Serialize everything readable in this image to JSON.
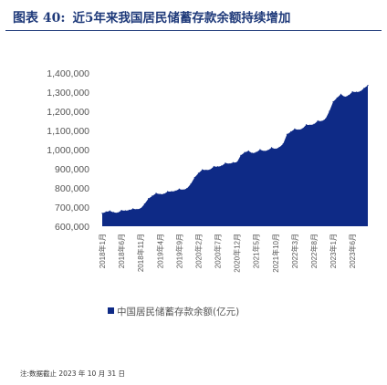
{
  "header": {
    "figure_label": "图表 40:",
    "title": "近5年来我国居民储蓄存款余额持续增加"
  },
  "note": "注:数据截止 2023 年 10 月 31 日",
  "colors": {
    "title": "#1f3a7a",
    "area": "#0e2a86"
  },
  "chart_data": {
    "type": "area",
    "title": "近5年来我国居民储蓄存款余额持续增加",
    "xlabel": "",
    "ylabel": "",
    "ylim": [
      600000,
      1400000
    ],
    "yticks": [
      600000,
      700000,
      800000,
      900000,
      1000000,
      1100000,
      1200000,
      1300000,
      1400000
    ],
    "ytick_labels": [
      "600,000",
      "700,000",
      "800,000",
      "900,000",
      "1,000,000",
      "1,100,000",
      "1,200,000",
      "1,300,000",
      "1,400,000"
    ],
    "grid": false,
    "legend_position": "bottom",
    "categories": [
      "2018年1月",
      "2018年6月",
      "2018年11月",
      "2019年4月",
      "2019年9月",
      "2020年2月",
      "2020年7月",
      "2020年12月",
      "2021年5月",
      "2021年10月",
      "2022年3月",
      "2022年8月",
      "2023年1月",
      "2023年6月"
    ],
    "x": [
      "2018-01",
      "2018-02",
      "2018-03",
      "2018-04",
      "2018-05",
      "2018-06",
      "2018-07",
      "2018-08",
      "2018-09",
      "2018-10",
      "2018-11",
      "2018-12",
      "2019-01",
      "2019-02",
      "2019-03",
      "2019-04",
      "2019-05",
      "2019-06",
      "2019-07",
      "2019-08",
      "2019-09",
      "2019-10",
      "2019-11",
      "2019-12",
      "2020-01",
      "2020-02",
      "2020-03",
      "2020-04",
      "2020-05",
      "2020-06",
      "2020-07",
      "2020-08",
      "2020-09",
      "2020-10",
      "2020-11",
      "2020-12",
      "2021-01",
      "2021-02",
      "2021-03",
      "2021-04",
      "2021-05",
      "2021-06",
      "2021-07",
      "2021-08",
      "2021-09",
      "2021-10",
      "2021-11",
      "2021-12",
      "2022-01",
      "2022-02",
      "2022-03",
      "2022-04",
      "2022-05",
      "2022-06",
      "2022-07",
      "2022-08",
      "2022-09",
      "2022-10",
      "2022-11",
      "2022-12",
      "2023-01",
      "2023-02",
      "2023-03",
      "2023-04",
      "2023-05",
      "2023-06",
      "2023-07",
      "2023-08",
      "2023-09",
      "2023-10"
    ],
    "series": [
      {
        "name": "中国居民储蓄存款余额(亿元)",
        "color": "#0e2a86",
        "values": [
          668000,
          675000,
          680000,
          672000,
          670000,
          683000,
          681000,
          684000,
          691000,
          688000,
          693000,
          716000,
          744000,
          758000,
          772000,
          767000,
          768000,
          781000,
          781000,
          784000,
          794000,
          790000,
          797000,
          820000,
          855000,
          877000,
          895000,
          893000,
          895000,
          912000,
          911000,
          915000,
          930000,
          926000,
          932000,
          934000,
          970000,
          985000,
          993000,
          981000,
          986000,
          1000000,
          992000,
          996000,
          1010000,
          1003000,
          1012000,
          1030000,
          1080000,
          1093000,
          1108000,
          1103000,
          1109000,
          1130000,
          1128000,
          1132000,
          1150000,
          1148000,
          1160000,
          1200000,
          1250000,
          1270000,
          1289000,
          1275000,
          1283000,
          1302000,
          1300000,
          1303000,
          1320000,
          1335000
        ]
      }
    ]
  }
}
